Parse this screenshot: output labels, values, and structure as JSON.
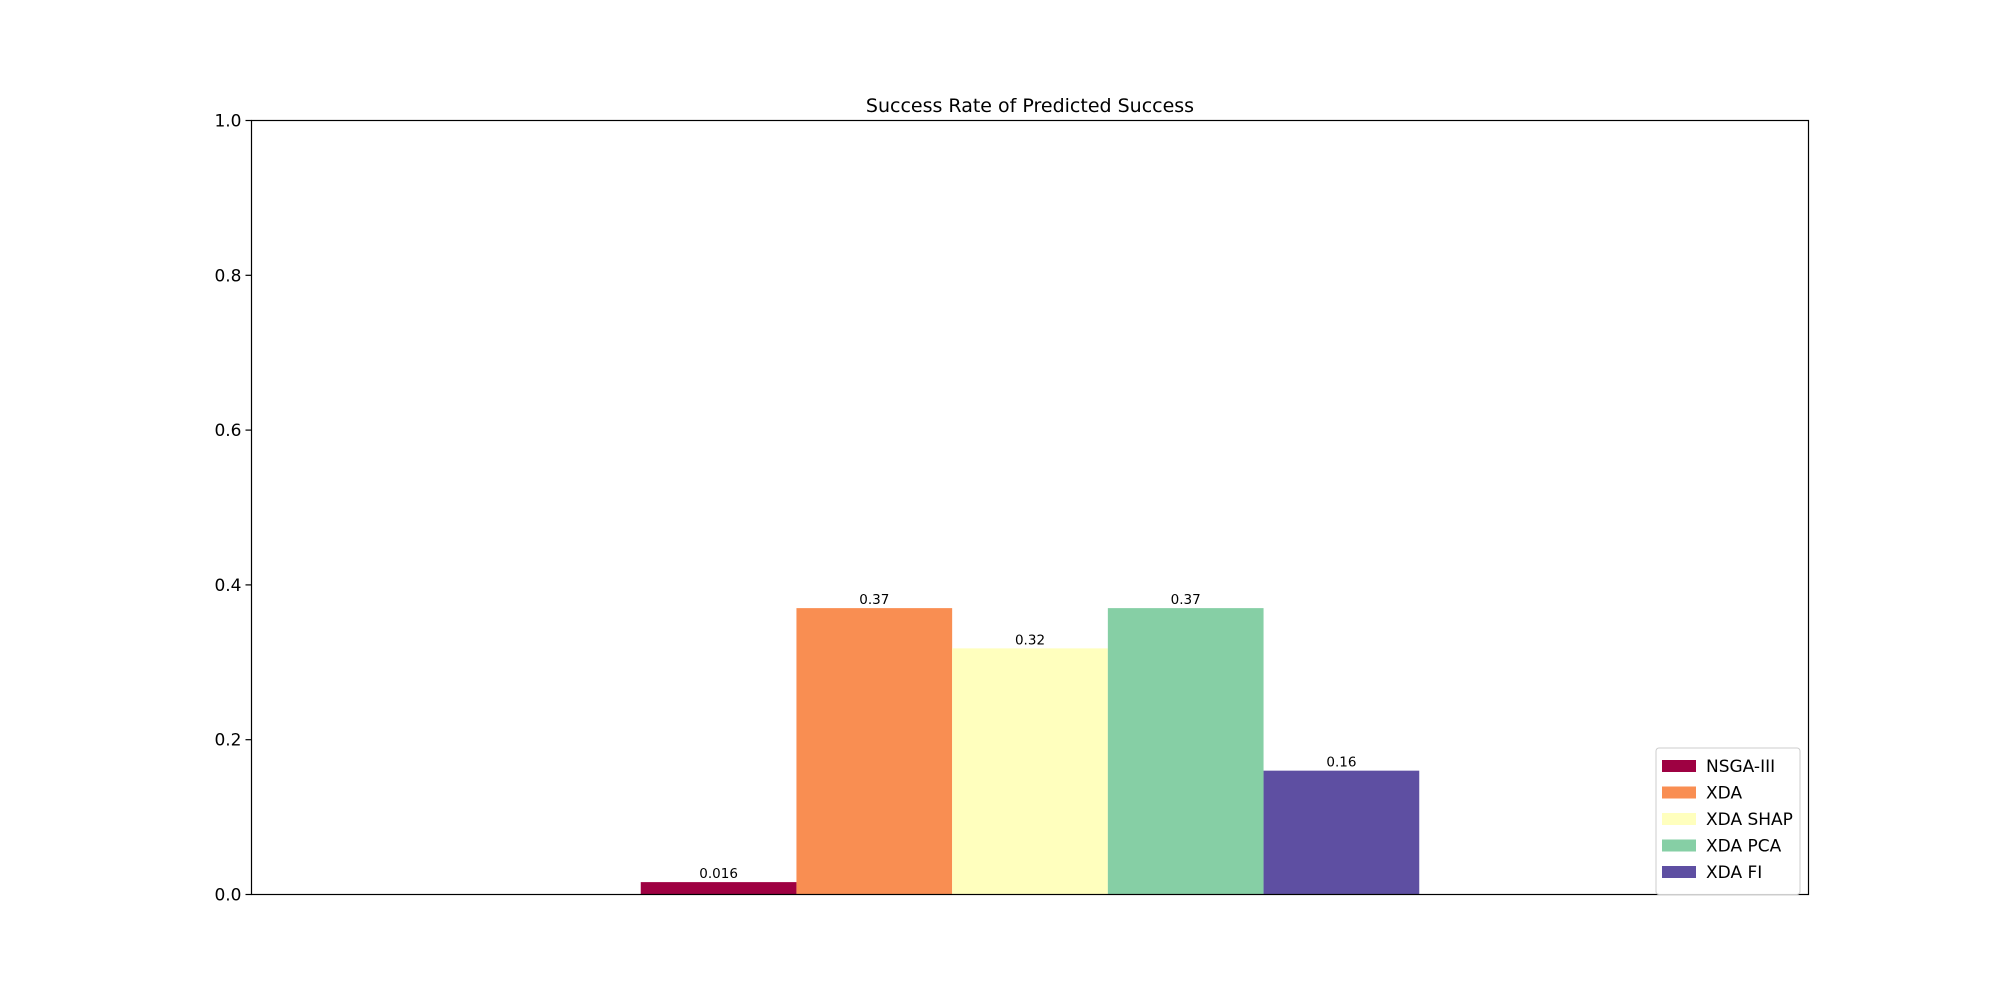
{
  "chart_data": {
    "type": "bar",
    "title": "Success Rate of Predicted Success",
    "xlabel": "",
    "ylabel": "",
    "ylim": [
      0,
      1.0
    ],
    "yticks": [
      {
        "value": 0.0,
        "label": "0.0"
      },
      {
        "value": 0.2,
        "label": "0.2"
      },
      {
        "value": 0.4,
        "label": "0.4"
      },
      {
        "value": 0.6,
        "label": "0.6"
      },
      {
        "value": 0.8,
        "label": "0.8"
      },
      {
        "value": 1.0,
        "label": "1.0"
      }
    ],
    "grid": false,
    "legend_position": "lower-right",
    "series": [
      {
        "name": "NSGA-III",
        "value": 0.016,
        "label": "0.016",
        "color": "#9e0142"
      },
      {
        "name": "XDA",
        "value": 0.37,
        "label": "0.37",
        "color": "#f98e52"
      },
      {
        "name": "XDA SHAP",
        "value": 0.318,
        "label": "0.32",
        "color": "#ffffbe"
      },
      {
        "name": "XDA PCA",
        "value": 0.37,
        "label": "0.37",
        "color": "#86cfa5"
      },
      {
        "name": "XDA FI",
        "value": 0.16,
        "label": "0.16",
        "color": "#5e4fa2"
      }
    ]
  }
}
